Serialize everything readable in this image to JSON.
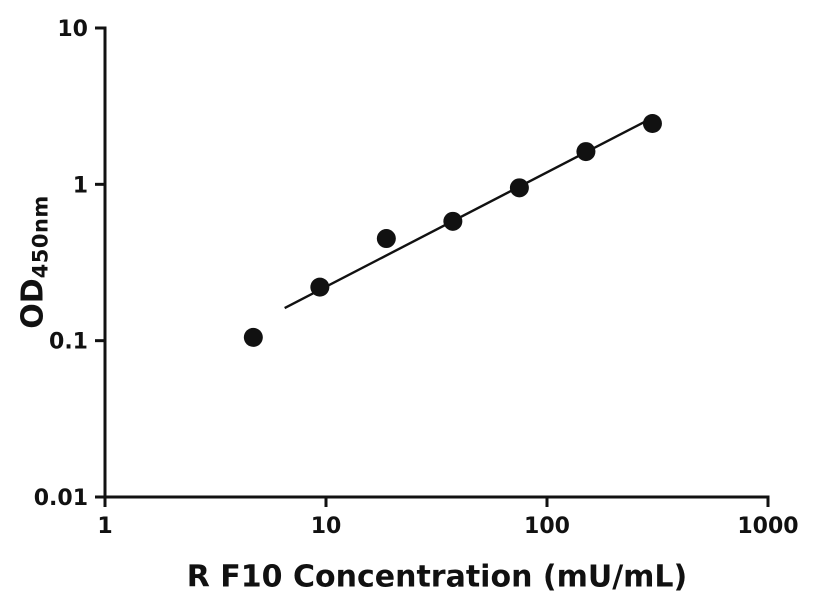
{
  "chart_data": {
    "type": "scatter",
    "title": "",
    "xlabel": "R F10 Concentration (mU/mL)",
    "ylabel_main": "OD",
    "ylabel_sub": "450nm",
    "x": [
      4.69,
      9.38,
      18.75,
      37.5,
      75,
      150,
      300
    ],
    "y": [
      0.105,
      0.22,
      0.45,
      0.58,
      0.95,
      1.62,
      2.45
    ],
    "xscale": "log",
    "yscale": "log",
    "xlim": [
      1,
      1000
    ],
    "ylim": [
      0.01,
      10
    ],
    "x_ticks": [
      1,
      10,
      100,
      1000
    ],
    "x_tick_labels": [
      "1",
      "10",
      "100",
      "1000"
    ],
    "y_ticks": [
      0.01,
      0.1,
      1,
      10
    ],
    "y_tick_labels": [
      "0.01",
      "0.1",
      "1",
      "10"
    ],
    "grid": false,
    "legend": "none",
    "marker_color": "#111111",
    "line_color": "#111111",
    "axis_color": "#111111",
    "fit_line": {
      "type": "power",
      "x_range": [
        6.5,
        300
      ]
    }
  }
}
